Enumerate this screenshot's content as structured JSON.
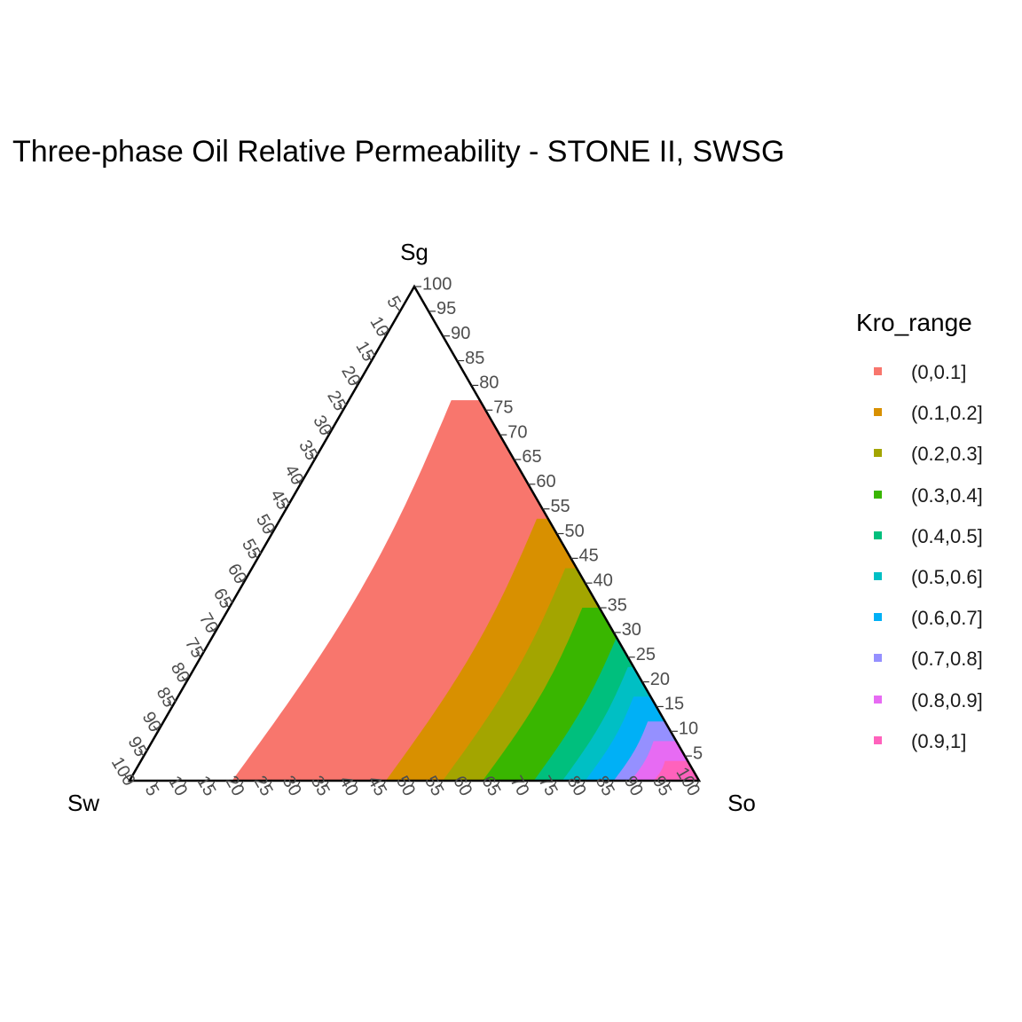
{
  "chart_data": {
    "type": "ternary-contour",
    "title": "Three-phase Oil Relative Permeability - STONE II, SWSG",
    "axes": {
      "top": "Sg",
      "left": "Sw",
      "right": "So"
    },
    "ticks": [
      "5",
      "10",
      "15",
      "20",
      "25",
      "30",
      "35",
      "40",
      "45",
      "50",
      "55",
      "60",
      "65",
      "70",
      "75",
      "80",
      "85",
      "90",
      "95",
      "100"
    ],
    "legend": {
      "title": "Kro_range",
      "items": [
        {
          "label": "(0,0.1]",
          "color": "#F8766D"
        },
        {
          "label": "(0.1,0.2]",
          "color": "#D89000"
        },
        {
          "label": "(0.2,0.3]",
          "color": "#A3A500"
        },
        {
          "label": "(0.3,0.4]",
          "color": "#39B600"
        },
        {
          "label": "(0.4,0.5]",
          "color": "#00BF7D"
        },
        {
          "label": "(0.5,0.6]",
          "color": "#00BFC4"
        },
        {
          "label": "(0.6,0.7]",
          "color": "#00B0F6"
        },
        {
          "label": "(0.7,0.8]",
          "color": "#9590FF"
        },
        {
          "label": "(0.8,0.9]",
          "color": "#E76BF3"
        },
        {
          "label": "(0.9,1]",
          "color": "#FF62BC"
        }
      ]
    },
    "regions": [
      {
        "range": "(0,0.1]",
        "min_so": 0.18,
        "max_so": 1.0,
        "max_sg": 0.77
      },
      {
        "range": "(0.1,0.2]",
        "min_so": 0.45,
        "max_so": 1.0,
        "max_sg": 0.53
      },
      {
        "range": "(0.2,0.3]",
        "min_so": 0.55,
        "max_so": 1.0,
        "max_sg": 0.43
      },
      {
        "range": "(0.3,0.4]",
        "min_so": 0.62,
        "max_so": 1.0,
        "max_sg": 0.35
      },
      {
        "range": "(0.4,0.5]",
        "min_so": 0.71,
        "max_so": 1.0,
        "max_sg": 0.29
      },
      {
        "range": "(0.5,0.6]",
        "min_so": 0.76,
        "max_so": 1.0,
        "max_sg": 0.23
      },
      {
        "range": "(0.6,0.7]",
        "min_so": 0.8,
        "max_so": 1.0,
        "max_sg": 0.17
      },
      {
        "range": "(0.7,0.8]",
        "min_so": 0.85,
        "max_so": 1.0,
        "max_sg": 0.12
      },
      {
        "range": "(0.8,0.9]",
        "min_so": 0.88,
        "max_so": 1.0,
        "max_sg": 0.08
      },
      {
        "range": "(0.9,1]",
        "min_so": 0.92,
        "max_so": 1.0,
        "max_sg": 0.04
      }
    ]
  }
}
